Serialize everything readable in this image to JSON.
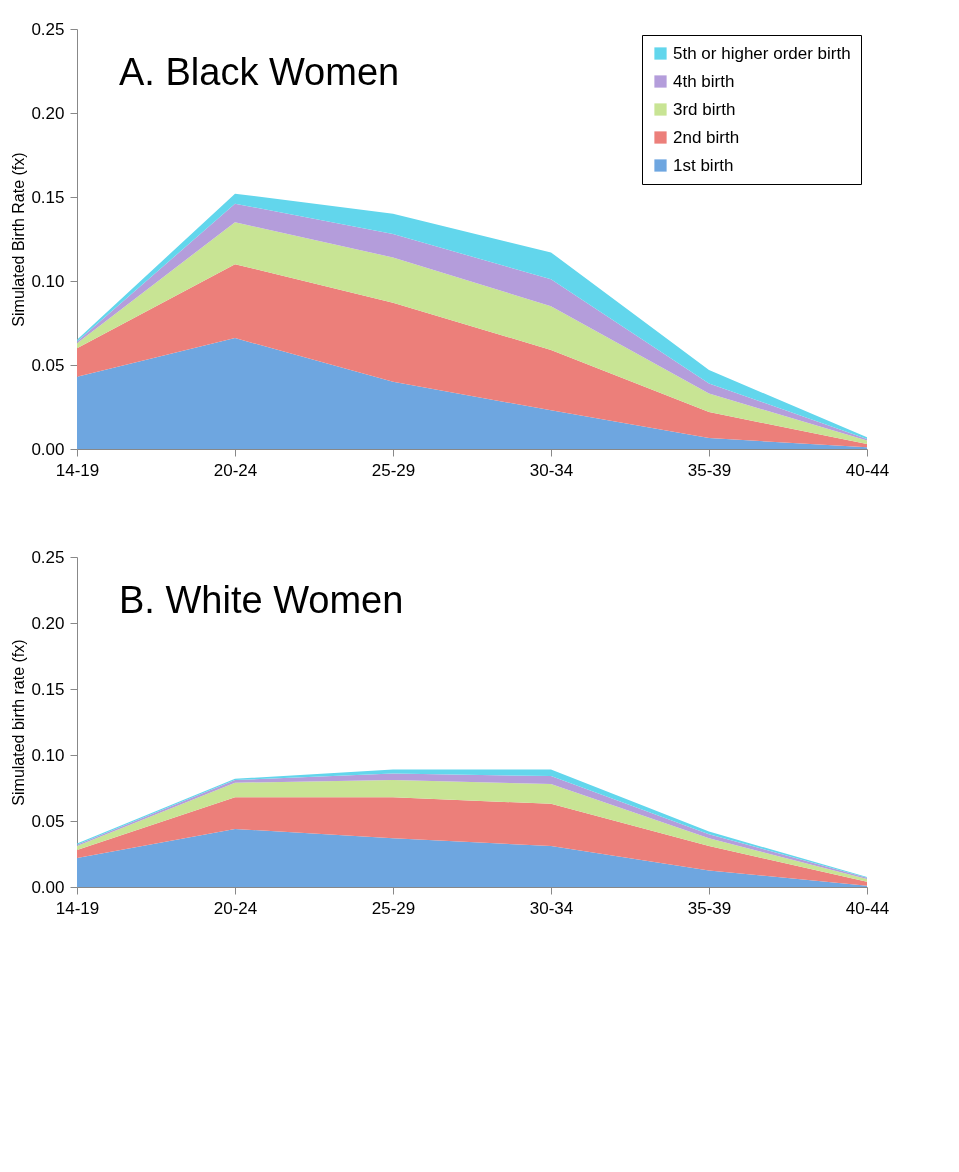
{
  "chart_data": [
    {
      "type": "area",
      "stacked": true,
      "title": "A. Black Women",
      "ylabel": "Simulated Birth Rate (fx)",
      "categories": [
        "14-19",
        "20-24",
        "25-29",
        "30-34",
        "35-39",
        "40-44"
      ],
      "ylim": [
        0,
        0.25
      ],
      "yticks": [
        {
          "value": 0,
          "label": "0.00"
        },
        {
          "value": 0.05,
          "label": "0.05"
        },
        {
          "value": 0.1,
          "label": "0.10"
        },
        {
          "value": 0.15,
          "label": "0.15"
        },
        {
          "value": 0.2,
          "label": "0.20"
        },
        {
          "value": 0.25,
          "label": "0.25"
        }
      ],
      "grid": false,
      "legend": "top right",
      "series": [
        {
          "name": "1st birth",
          "color": "#6ea6e0",
          "values": [
            0.043,
            0.066,
            0.04,
            0.023,
            0.0065,
            0.001
          ]
        },
        {
          "name": "2nd birth",
          "color": "#ec7f7a",
          "values": [
            0.017,
            0.044,
            0.047,
            0.036,
            0.0155,
            0.002
          ]
        },
        {
          "name": "3rd birth",
          "color": "#c8e494",
          "values": [
            0.003,
            0.025,
            0.027,
            0.026,
            0.011,
            0.002
          ]
        },
        {
          "name": "4th birth",
          "color": "#b49ddb",
          "values": [
            0.001,
            0.011,
            0.014,
            0.016,
            0.006,
            0.001
          ]
        },
        {
          "name": "5th or higher order birth",
          "color": "#62d6ec",
          "values": [
            0.001,
            0.006,
            0.012,
            0.016,
            0.008,
            0.001
          ]
        }
      ]
    },
    {
      "type": "area",
      "stacked": true,
      "title": "B. White Women",
      "ylabel": "Simulated birth rate (fx)",
      "categories": [
        "14-19",
        "20-24",
        "25-29",
        "30-34",
        "35-39",
        "40-44"
      ],
      "ylim": [
        0,
        0.25
      ],
      "yticks": [
        {
          "value": 0,
          "label": "0.00"
        },
        {
          "value": 0.05,
          "label": "0.05"
        },
        {
          "value": 0.1,
          "label": "0.10"
        },
        {
          "value": 0.15,
          "label": "0.15"
        },
        {
          "value": 0.2,
          "label": "0.20"
        },
        {
          "value": 0.25,
          "label": "0.25"
        }
      ],
      "grid": false,
      "series": [
        {
          "color": "#6ea6e0",
          "values": [
            0.022,
            0.044,
            0.037,
            0.031,
            0.0125,
            0.001
          ]
        },
        {
          "color": "#ec7f7a",
          "values": [
            0.006,
            0.024,
            0.031,
            0.032,
            0.0185,
            0.003
          ]
        },
        {
          "color": "#c8e494",
          "values": [
            0.003,
            0.011,
            0.013,
            0.015,
            0.006,
            0.002
          ]
        },
        {
          "color": "#b49ddb",
          "values": [
            0.001,
            0.002,
            0.005,
            0.006,
            0.003,
            0.001
          ]
        },
        {
          "color": "#62d6ec",
          "values": [
            0.001,
            0.001,
            0.003,
            0.005,
            0.002,
            0.0005
          ]
        }
      ]
    }
  ]
}
